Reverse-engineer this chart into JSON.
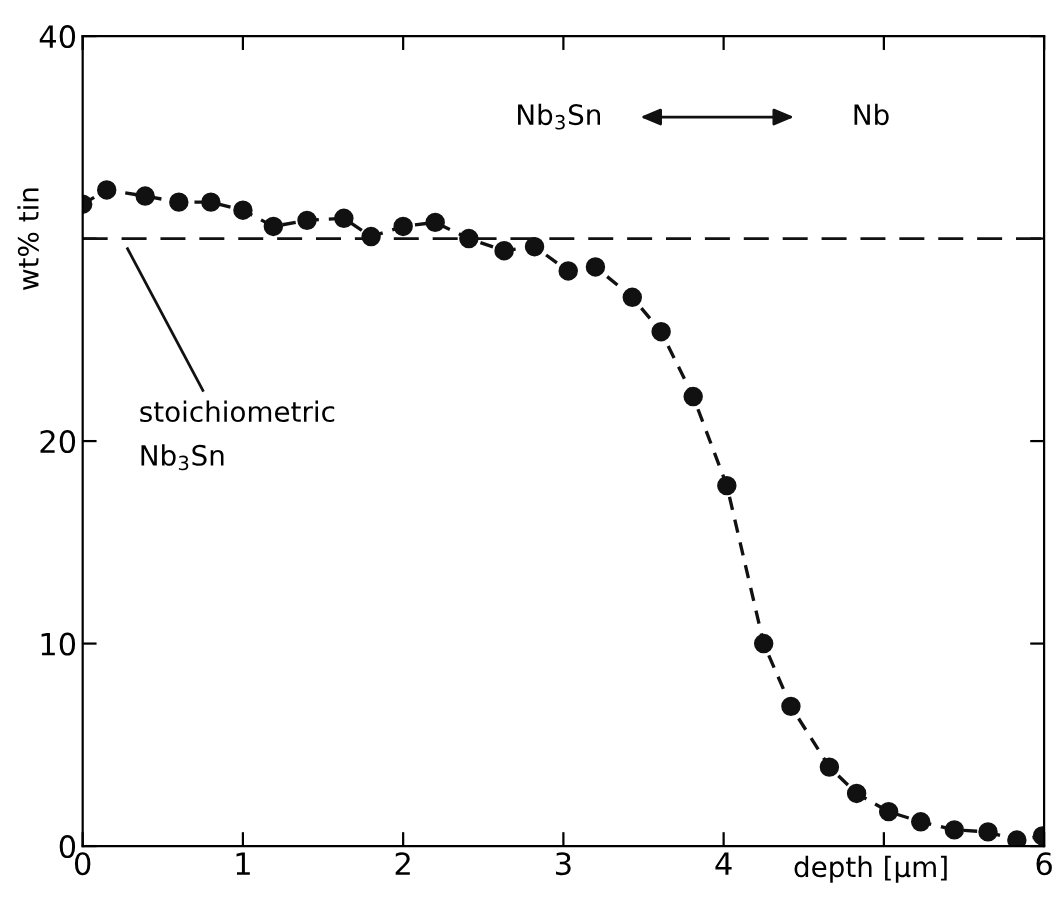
{
  "chart_data": {
    "type": "line",
    "xlabel": "depth [µm]",
    "ylabel": "wt% tin",
    "x": [
      0,
      0.15,
      0.39,
      0.6,
      0.8,
      1.0,
      1.19,
      1.4,
      1.63,
      1.8,
      2.0,
      2.2,
      2.41,
      2.63,
      2.82,
      3.03,
      3.2,
      3.43,
      3.61,
      3.81,
      4.02,
      4.25,
      4.42,
      4.66,
      4.83,
      5.03,
      5.23,
      5.44,
      5.65,
      5.83,
      5.99
    ],
    "series": [
      {
        "color": "#111111",
        "values": [
          31.7,
          32.4,
          32.1,
          31.8,
          31.8,
          31.4,
          30.6,
          30.9,
          31.0,
          30.1,
          30.6,
          30.8,
          30.0,
          29.4,
          29.6,
          28.4,
          28.6,
          27.1,
          25.4,
          22.2,
          17.8,
          10.0,
          6.9,
          3.9,
          2.6,
          1.7,
          1.2,
          0.8,
          0.7,
          0.3,
          0.5
        ]
      }
    ],
    "marker": "circle",
    "line_style": "dashed",
    "xlim": [
      0,
      6
    ],
    "ylim": [
      0,
      40
    ],
    "xticks": [
      0,
      1,
      2,
      3,
      4,
      {
        "value": 5,
        "label": null
      },
      6
    ],
    "yticks": [
      0,
      10,
      20,
      {
        "value": 30,
        "label": null
      },
      40
    ],
    "ref_lines": [
      {
        "axis": "y",
        "value": 30,
        "label": "stoichiometric\nNb$_{3}$Sn",
        "line_style": "dashed",
        "color": "#111111"
      }
    ],
    "annotations": [
      "Nb$_{3}$Sn",
      "Nb"
    ]
  }
}
